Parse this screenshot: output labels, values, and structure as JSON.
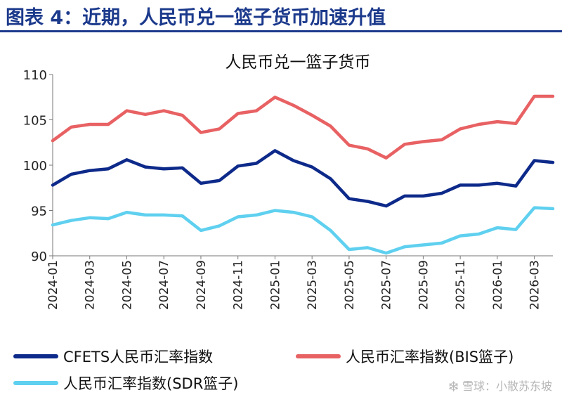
{
  "figure": {
    "title": "图表 4：近期，人民币兑一篮子货币加速升值",
    "watermark": "雪球：小散苏东坡"
  },
  "colors": {
    "title": "#1c3a8c",
    "cfets": "#0d2a8a",
    "bis": "#e86163",
    "sdr": "#5fd0ef"
  },
  "chart_data": {
    "type": "line",
    "title": "人民币兑一篮子货币",
    "ylim": [
      90,
      110
    ],
    "yticks": [
      90,
      95,
      100,
      105,
      110
    ],
    "x_start": "2024-01",
    "x_end": "2026-04",
    "xticks": [
      "2024-01",
      "2024-03",
      "2024-05",
      "2024-07",
      "2024-09",
      "2024-11",
      "2025-01",
      "2025-03",
      "2025-05",
      "2025-07",
      "2025-09",
      "2025-11",
      "2026-01",
      "2026-03"
    ],
    "legend": "bottom",
    "grid": false,
    "x": [
      "2024-01",
      "2024-02",
      "2024-03",
      "2024-04",
      "2024-05",
      "2024-06",
      "2024-07",
      "2024-08",
      "2024-09",
      "2024-10",
      "2024-11",
      "2024-12",
      "2025-01",
      "2025-02",
      "2025-03",
      "2025-04",
      "2025-05",
      "2025-06",
      "2025-07",
      "2025-08",
      "2025-09",
      "2025-10",
      "2025-11",
      "2025-12",
      "2026-01",
      "2026-02",
      "2026-03",
      "2026-04"
    ],
    "series": [
      {
        "name": "CFETS人民币汇率指数",
        "color": "#0d2a8a",
        "values": [
          97.8,
          99.0,
          99.4,
          99.6,
          100.6,
          99.8,
          99.6,
          99.7,
          98.0,
          98.3,
          99.9,
          100.2,
          101.6,
          100.5,
          99.8,
          98.5,
          96.3,
          96.0,
          95.5,
          96.6,
          96.6,
          96.9,
          97.8,
          97.8,
          98.0,
          97.7,
          100.5,
          100.3
        ]
      },
      {
        "name": "人民币汇率指数(BIS篮子)",
        "color": "#e86163",
        "values": [
          102.7,
          104.2,
          104.5,
          104.5,
          106.0,
          105.6,
          106.0,
          105.5,
          103.6,
          104.0,
          105.7,
          106.0,
          107.5,
          106.6,
          105.5,
          104.3,
          102.2,
          101.8,
          100.8,
          102.3,
          102.6,
          102.8,
          104.0,
          104.5,
          104.8,
          104.6,
          107.6,
          107.6
        ]
      },
      {
        "name": "人民币汇率指数(SDR篮子)",
        "color": "#5fd0ef",
        "values": [
          93.4,
          93.9,
          94.2,
          94.1,
          94.8,
          94.5,
          94.5,
          94.4,
          92.8,
          93.3,
          94.3,
          94.5,
          95.0,
          94.8,
          94.3,
          92.8,
          90.7,
          90.9,
          90.3,
          91.0,
          91.2,
          91.4,
          92.2,
          92.4,
          93.1,
          92.9,
          95.3,
          95.2
        ]
      }
    ]
  }
}
